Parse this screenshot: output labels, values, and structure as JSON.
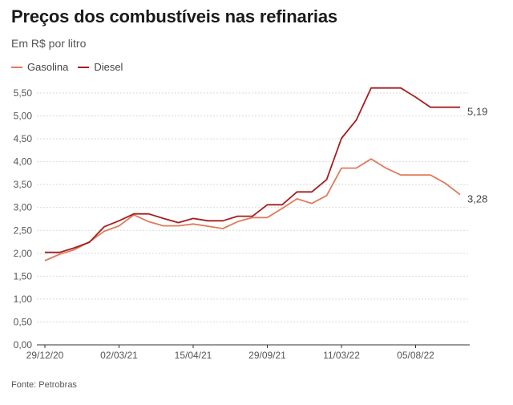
{
  "colors": {
    "gasolina": "#e07b5c",
    "diesel": "#a51d1d",
    "grid": "#d9d9d9",
    "axis": "#333333"
  },
  "chart_data": {
    "type": "line",
    "title": "Preços dos combustíveis nas refinarias",
    "subtitle": "Em R$ por litro",
    "source": "Fonte: Petrobras",
    "ylim": [
      0,
      5.5
    ],
    "yticks": [
      "0,00",
      "0,50",
      "1,00",
      "1,50",
      "2,00",
      "2,50",
      "3,00",
      "3,50",
      "4,00",
      "4,50",
      "5,00",
      "5,50"
    ],
    "x_tick_labels": [
      "29/12/20",
      "02/03/21",
      "15/04/21",
      "29/09/21",
      "11/03/22",
      "05/08/22"
    ],
    "legend": [
      "Gasolina",
      "Diesel"
    ],
    "legend_position": "top-left",
    "end_labels": {
      "Gasolina": "3,28",
      "Diesel": "5,19"
    },
    "series": [
      {
        "name": "Gasolina",
        "values": [
          1.84,
          1.98,
          2.08,
          2.25,
          2.48,
          2.6,
          2.84,
          2.69,
          2.6,
          2.6,
          2.64,
          2.59,
          2.54,
          2.69,
          2.78,
          2.78,
          2.98,
          3.19,
          3.09,
          3.26,
          3.86,
          3.86,
          4.06,
          3.86,
          3.71,
          3.71,
          3.71,
          3.53,
          3.28
        ]
      },
      {
        "name": "Diesel",
        "values": [
          2.02,
          2.02,
          2.12,
          2.24,
          2.58,
          2.71,
          2.86,
          2.86,
          2.76,
          2.67,
          2.76,
          2.71,
          2.71,
          2.81,
          2.81,
          3.06,
          3.06,
          3.34,
          3.34,
          3.61,
          4.51,
          4.91,
          5.61,
          5.61,
          5.61,
          5.41,
          5.19,
          5.19,
          5.19
        ]
      }
    ]
  }
}
